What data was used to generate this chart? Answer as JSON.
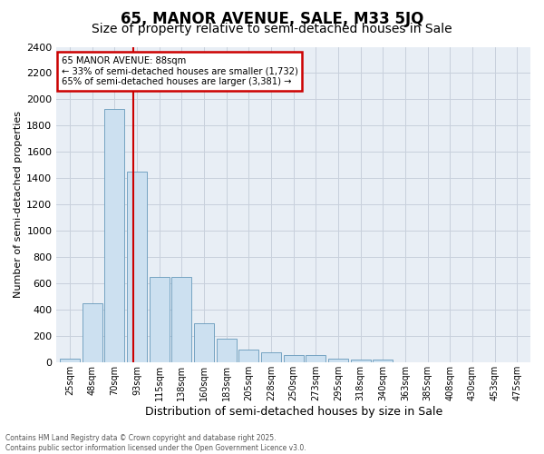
{
  "title": "65, MANOR AVENUE, SALE, M33 5JQ",
  "subtitle": "Size of property relative to semi-detached houses in Sale",
  "xlabel": "Distribution of semi-detached houses by size in Sale",
  "ylabel": "Number of semi-detached properties",
  "categories": [
    "25sqm",
    "48sqm",
    "70sqm",
    "93sqm",
    "115sqm",
    "138sqm",
    "160sqm",
    "183sqm",
    "205sqm",
    "228sqm",
    "250sqm",
    "273sqm",
    "295sqm",
    "318sqm",
    "340sqm",
    "363sqm",
    "385sqm",
    "408sqm",
    "430sqm",
    "453sqm",
    "475sqm"
  ],
  "values": [
    30,
    450,
    1930,
    1450,
    650,
    650,
    300,
    180,
    100,
    80,
    55,
    55,
    30,
    20,
    20,
    5,
    5,
    0,
    0,
    0,
    0
  ],
  "bar_color": "#cce0f0",
  "bar_edge_color": "#6699bb",
  "grid_color": "#c8d0dc",
  "bg_color": "#e8eef5",
  "annotation_title": "65 MANOR AVENUE: 88sqm",
  "annotation_line1": "← 33% of semi-detached houses are smaller (1,732)",
  "annotation_line2": "65% of semi-detached houses are larger (3,381) →",
  "annotation_box_color": "#ffffff",
  "annotation_box_edge": "#cc0000",
  "vline_color": "#cc0000",
  "footer_line1": "Contains HM Land Registry data © Crown copyright and database right 2025.",
  "footer_line2": "Contains public sector information licensed under the Open Government Licence v3.0.",
  "ylim": [
    0,
    2400
  ],
  "yticks": [
    0,
    200,
    400,
    600,
    800,
    1000,
    1200,
    1400,
    1600,
    1800,
    2000,
    2200,
    2400
  ],
  "vline_bar_index": 2.85,
  "title_fontsize": 12,
  "subtitle_fontsize": 10,
  "ylabel_fontsize": 8,
  "xlabel_fontsize": 9
}
